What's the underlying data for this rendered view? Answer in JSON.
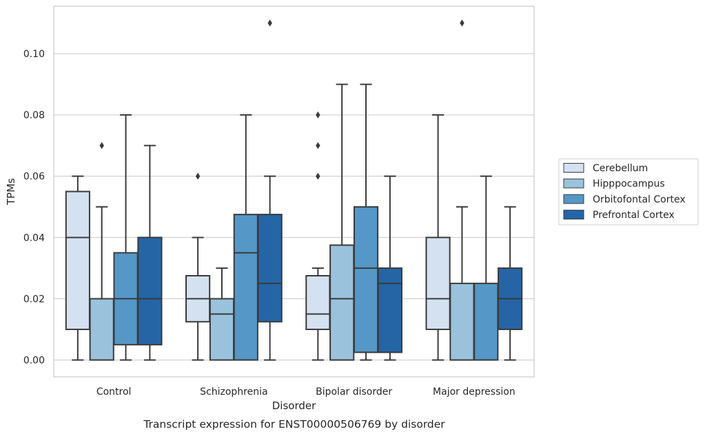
{
  "chart_data": {
    "type": "box",
    "xlabel": "Disorder",
    "ylabel": "TPMs",
    "caption": "Transcript expression for ENST00000506769 by disorder",
    "ylim": [
      -0.0055,
      0.1155
    ],
    "yticks": [
      0.0,
      0.02,
      0.04,
      0.06,
      0.08,
      0.1
    ],
    "ytick_labels": [
      "0.00",
      "0.02",
      "0.04",
      "0.06",
      "0.08",
      "0.10"
    ],
    "grid": "horizontal",
    "legend_position": "outside-right",
    "categories": [
      "Control",
      "Schizophrenia",
      "Bipolar disorder",
      "Major depression"
    ],
    "series": [
      {
        "name": "Cerebellum",
        "color": "#d4e1f0",
        "boxes": [
          {
            "whisker_low": 0.0,
            "q1": 0.01,
            "median": 0.04,
            "q3": 0.055,
            "whisker_high": 0.06,
            "outliers": []
          },
          {
            "whisker_low": 0.0,
            "q1": 0.0125,
            "median": 0.02,
            "q3": 0.0275,
            "whisker_high": 0.04,
            "outliers": [
              0.06
            ]
          },
          {
            "whisker_low": 0.0,
            "q1": 0.01,
            "median": 0.015,
            "q3": 0.0275,
            "whisker_high": 0.03,
            "outliers": [
              0.06,
              0.07,
              0.08
            ]
          },
          {
            "whisker_low": 0.0,
            "q1": 0.01,
            "median": 0.02,
            "q3": 0.04,
            "whisker_high": 0.08,
            "outliers": []
          }
        ]
      },
      {
        "name": "Hipppocampus",
        "color": "#9ac2dc",
        "boxes": [
          {
            "whisker_low": 0.0,
            "q1": 0.0,
            "median": 0.0,
            "q3": 0.02,
            "whisker_high": 0.05,
            "outliers": [
              0.07
            ]
          },
          {
            "whisker_low": 0.0,
            "q1": 0.0,
            "median": 0.015,
            "q3": 0.02,
            "whisker_high": 0.03,
            "outliers": []
          },
          {
            "whisker_low": 0.0,
            "q1": 0.0,
            "median": 0.02,
            "q3": 0.0375,
            "whisker_high": 0.09,
            "outliers": []
          },
          {
            "whisker_low": 0.0,
            "q1": 0.0,
            "median": 0.0,
            "q3": 0.025,
            "whisker_high": 0.05,
            "outliers": [
              0.11
            ]
          }
        ]
      },
      {
        "name": "Orbitofontal Cortex",
        "color": "#5597c6",
        "boxes": [
          {
            "whisker_low": 0.0,
            "q1": 0.005,
            "median": 0.02,
            "q3": 0.035,
            "whisker_high": 0.08,
            "outliers": []
          },
          {
            "whisker_low": 0.0,
            "q1": 0.0,
            "median": 0.035,
            "q3": 0.0475,
            "whisker_high": 0.08,
            "outliers": []
          },
          {
            "whisker_low": 0.0,
            "q1": 0.0025,
            "median": 0.03,
            "q3": 0.05,
            "whisker_high": 0.09,
            "outliers": []
          },
          {
            "whisker_low": 0.0,
            "q1": 0.0,
            "median": 0.0,
            "q3": 0.025,
            "whisker_high": 0.06,
            "outliers": []
          }
        ]
      },
      {
        "name": "Prefrontal Cortex",
        "color": "#2565a6",
        "boxes": [
          {
            "whisker_low": 0.0,
            "q1": 0.005,
            "median": 0.02,
            "q3": 0.04,
            "whisker_high": 0.07,
            "outliers": []
          },
          {
            "whisker_low": 0.0,
            "q1": 0.0125,
            "median": 0.025,
            "q3": 0.0475,
            "whisker_high": 0.06,
            "outliers": [
              0.11
            ]
          },
          {
            "whisker_low": 0.0,
            "q1": 0.0025,
            "median": 0.025,
            "q3": 0.03,
            "whisker_high": 0.06,
            "outliers": []
          },
          {
            "whisker_low": 0.0,
            "q1": 0.01,
            "median": 0.02,
            "q3": 0.03,
            "whisker_high": 0.05,
            "outliers": []
          }
        ]
      }
    ]
  }
}
